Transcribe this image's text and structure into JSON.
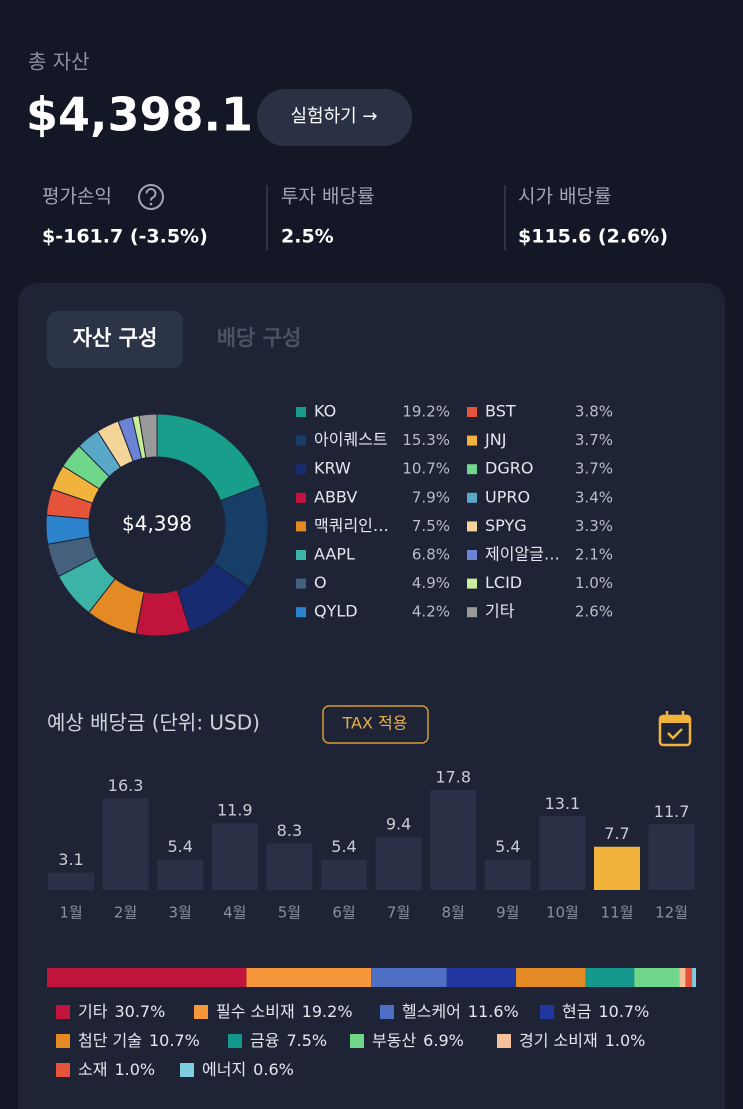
{
  "header": {
    "total_label": "총 자산",
    "total": "$4,398.1",
    "button": "실험하기 →"
  },
  "stats": [
    {
      "label": "평가손익",
      "value": "$-161.7 (-3.5%)"
    },
    {
      "label": "투자 배당률",
      "value": "2.5%"
    },
    {
      "label": "시가 배당률",
      "value": "$115.6 (2.6%)"
    }
  ],
  "tabs": [
    "자산 구성",
    "배당 구성"
  ],
  "chart_data": [
    {
      "type": "pie",
      "center_label": "$4,398",
      "categories": [
        "KO",
        "아이퀘스트",
        "KRW",
        "ABBV",
        "맥쿼리인…",
        "AAPL",
        "O",
        "QYLD",
        "BST",
        "JNJ",
        "DGRO",
        "UPRO",
        "SPYG",
        "제이알글…",
        "LCID",
        "기타"
      ],
      "values": [
        19.2,
        15.3,
        10.7,
        7.9,
        7.5,
        6.8,
        4.9,
        4.2,
        3.8,
        3.7,
        3.7,
        3.4,
        3.3,
        2.1,
        1.0,
        2.6
      ],
      "value_labels": [
        "19.2%",
        "15.3%",
        "10.7%",
        "7.9%",
        "7.5%",
        "6.8%",
        "4.9%",
        "4.2%",
        "3.8%",
        "3.7%",
        "3.7%",
        "3.4%",
        "3.3%",
        "2.1%",
        "1.0%",
        "2.6%"
      ],
      "colors": [
        "#1a9e8c",
        "#163e66",
        "#172a72",
        "#c0143c",
        "#e38a25",
        "#3bb3a6",
        "#44607d",
        "#2d84cc",
        "#e5533a",
        "#f2b33d",
        "#6fd68a",
        "#5aa8c8",
        "#f5d49a",
        "#6a83d4",
        "#c8ee9a",
        "#9a9a9a"
      ]
    },
    {
      "type": "bar",
      "title": "예상 배당금 (단위: USD)",
      "badge": "TAX 적용",
      "categories": [
        "1월",
        "2월",
        "3월",
        "4월",
        "5월",
        "6월",
        "7월",
        "8월",
        "9월",
        "10월",
        "11월",
        "12월"
      ],
      "values": [
        3.1,
        16.3,
        5.4,
        11.9,
        8.3,
        5.4,
        9.4,
        17.8,
        5.4,
        13.1,
        7.7,
        11.7
      ],
      "colors": [
        "#2a3146",
        "#2a3146",
        "#2a3146",
        "#2a3146",
        "#2a3146",
        "#2a3146",
        "#2a3146",
        "#2a3146",
        "#2a3146",
        "#2a3146",
        "#f2b33d",
        "#2a3146"
      ]
    },
    {
      "type": "stacked-bar",
      "categories": [
        "기타",
        "필수 소비재",
        "헬스케어",
        "현금",
        "첨단 기술",
        "금융",
        "부동산",
        "경기 소비재",
        "소재",
        "에너지"
      ],
      "values": [
        30.7,
        19.2,
        11.6,
        10.7,
        10.7,
        7.5,
        6.9,
        1.0,
        1.0,
        0.6
      ],
      "value_labels": [
        "30.7%",
        "19.2%",
        "11.6%",
        "10.7%",
        "10.7%",
        "7.5%",
        "6.9%",
        "1.0%",
        "1.0%",
        "0.6%"
      ],
      "colors": [
        "#c0143c",
        "#f5973a",
        "#4f6fc4",
        "#2236a0",
        "#e38a25",
        "#13988b",
        "#6fd68a",
        "#f5c09a",
        "#e5533a",
        "#7fcde0"
      ]
    }
  ]
}
